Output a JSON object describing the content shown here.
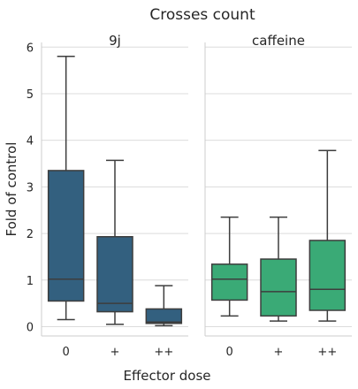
{
  "chart_data": {
    "type": "box",
    "title": "Crosses count",
    "xlabel": "Effector dose",
    "ylabel": "Fold of control",
    "ylim": [
      -0.2,
      6.1
    ],
    "yticks": [
      0,
      1,
      2,
      3,
      4,
      5,
      6
    ],
    "grid": true,
    "panels": [
      {
        "title": "9j",
        "color": "#33607f",
        "categories": [
          "0",
          "+",
          "++"
        ],
        "boxes": [
          {
            "category": "0",
            "whisker_low": 0.15,
            "q1": 0.55,
            "median": 1.02,
            "q3": 3.35,
            "whisker_high": 5.8
          },
          {
            "category": "+",
            "whisker_low": 0.05,
            "q1": 0.32,
            "median": 0.5,
            "q3": 1.93,
            "whisker_high": 3.57
          },
          {
            "category": "++",
            "whisker_low": 0.02,
            "q1": 0.07,
            "median": 0.1,
            "q3": 0.38,
            "whisker_high": 0.88
          }
        ]
      },
      {
        "title": "caffeine",
        "color": "#3aaa76",
        "categories": [
          "0",
          "+",
          "++"
        ],
        "boxes": [
          {
            "category": "0",
            "whisker_low": 0.23,
            "q1": 0.57,
            "median": 1.02,
            "q3": 1.34,
            "whisker_high": 2.35
          },
          {
            "category": "+",
            "whisker_low": 0.12,
            "q1": 0.23,
            "median": 0.75,
            "q3": 1.45,
            "whisker_high": 2.35
          },
          {
            "category": "++",
            "whisker_low": 0.12,
            "q1": 0.35,
            "median": 0.8,
            "q3": 1.85,
            "whisker_high": 3.78
          }
        ]
      }
    ]
  }
}
